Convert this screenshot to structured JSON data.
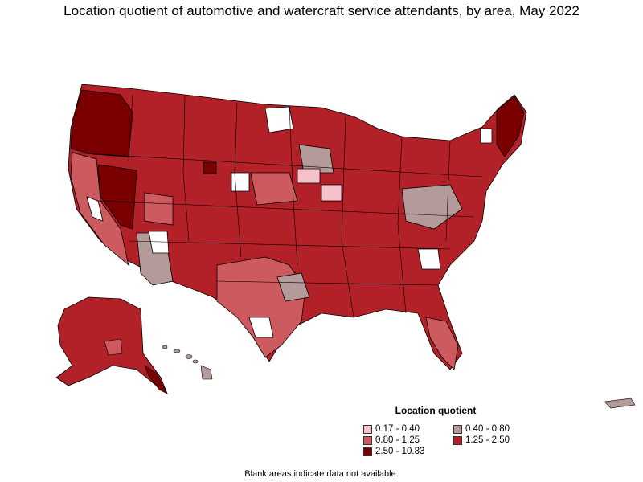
{
  "title": "Location quotient of automotive and watercraft service attendants, by area, May 2022",
  "legend": {
    "title": "Location quotient",
    "items": [
      {
        "label": "0.17 - 0.40",
        "color": "#f4c2c8"
      },
      {
        "label": "0.40 - 0.80",
        "color": "#b59a9a"
      },
      {
        "label": "0.80 - 1.25",
        "color": "#cd5a5f"
      },
      {
        "label": "1.25 - 2.50",
        "color": "#b22028"
      },
      {
        "label": "2.50 - 10.83",
        "color": "#7a0000"
      }
    ]
  },
  "footnote": "Blank areas indicate data not available.",
  "colors": {
    "very_high": "#7a0000",
    "high": "#b22028",
    "mid": "#cd5a5f",
    "low": "#b59a9a",
    "very_low": "#f4c2c8",
    "blank": "#ffffff",
    "border": "#000000"
  }
}
